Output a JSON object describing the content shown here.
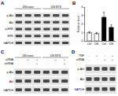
{
  "panels": [
    {
      "letter": "A",
      "groups": [
        "DN trans",
        "DN NTS"
      ],
      "lanes_per_group": 3,
      "treatments": [],
      "rows": [
        "p-Akt",
        "Akt",
        "p-ERK",
        "ERK",
        "GAPDH"
      ]
    },
    {
      "letter": "C",
      "groups": [
        "DN trans",
        "DN NTS"
      ],
      "lanes_per_group": 3,
      "treatments": [
        {
          "label": "siRNA",
          "signs": [
            "-",
            "+",
            "+",
            "-",
            "+",
            "+"
          ]
        },
        {
          "label": "shRNA",
          "signs": [
            "-",
            "-",
            "+",
            "-",
            "-",
            "+"
          ]
        }
      ],
      "rows": [
        "p-Akt",
        "Akt",
        "GAPDH"
      ]
    },
    {
      "letter": "D",
      "groups": [],
      "lanes_per_group": 4,
      "treatments": [
        {
          "label": "TNF",
          "signs": [
            "-",
            "+",
            "-",
            "+"
          ]
        },
        {
          "label": "siRNA",
          "signs": [
            "-",
            "-",
            "+",
            "+"
          ]
        }
      ],
      "rows": [
        "p-Akt",
        "Akt",
        "GAPDH"
      ]
    }
  ],
  "chart_data": {
    "type": "bar",
    "letter": "B",
    "y_label": "Relative level",
    "categories": [
      "Ctrl",
      "DN",
      "Ctrl",
      "DN"
    ],
    "values": [
      1.0,
      0.9,
      2.8,
      1.6
    ],
    "errors": [
      0.1,
      0.1,
      0.6,
      0.3
    ],
    "colors": [
      "#ffffff",
      "#ffffff",
      "#000000",
      "#000000"
    ],
    "ylim": [
      0,
      4
    ],
    "yticks": [
      0,
      1,
      2,
      3,
      4
    ],
    "grid": false
  }
}
